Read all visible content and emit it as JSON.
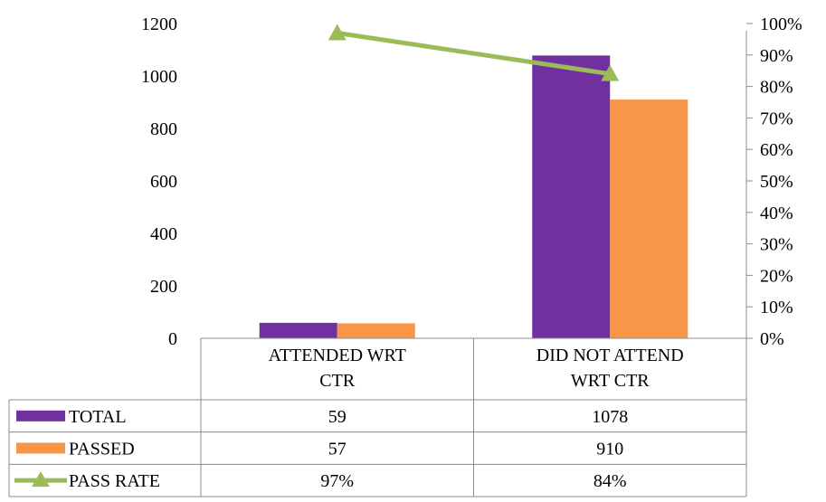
{
  "chart_data": {
    "type": "bar",
    "categories": [
      [
        "ATTENDED WRT",
        "CTR"
      ],
      [
        "DID NOT ATTEND",
        "WRT CTR"
      ]
    ],
    "series": [
      {
        "name": "TOTAL",
        "type": "bar",
        "axis": "left",
        "values": [
          59,
          1078
        ],
        "labels": [
          "59",
          "1078"
        ],
        "color": "#7030A0"
      },
      {
        "name": "PASSED",
        "type": "bar",
        "axis": "left",
        "values": [
          57,
          910
        ],
        "labels": [
          "57",
          "910"
        ],
        "color": "#F79646"
      },
      {
        "name": "PASS RATE",
        "type": "line",
        "axis": "right",
        "values": [
          0.97,
          0.84
        ],
        "labels": [
          "97%",
          "84%"
        ],
        "color": "#9BBB59",
        "marker": "triangle"
      }
    ],
    "y_left": {
      "min": 0,
      "max": 1200,
      "step": 200,
      "ticks": [
        "0",
        "200",
        "400",
        "600",
        "800",
        "1000",
        "1200"
      ]
    },
    "y_right": {
      "min": 0,
      "max": 1,
      "step": 0.1,
      "ticks": [
        "0%",
        "10%",
        "20%",
        "30%",
        "40%",
        "50%",
        "60%",
        "70%",
        "80%",
        "90%",
        "100%"
      ]
    },
    "legend": "data-table",
    "grid": false
  }
}
